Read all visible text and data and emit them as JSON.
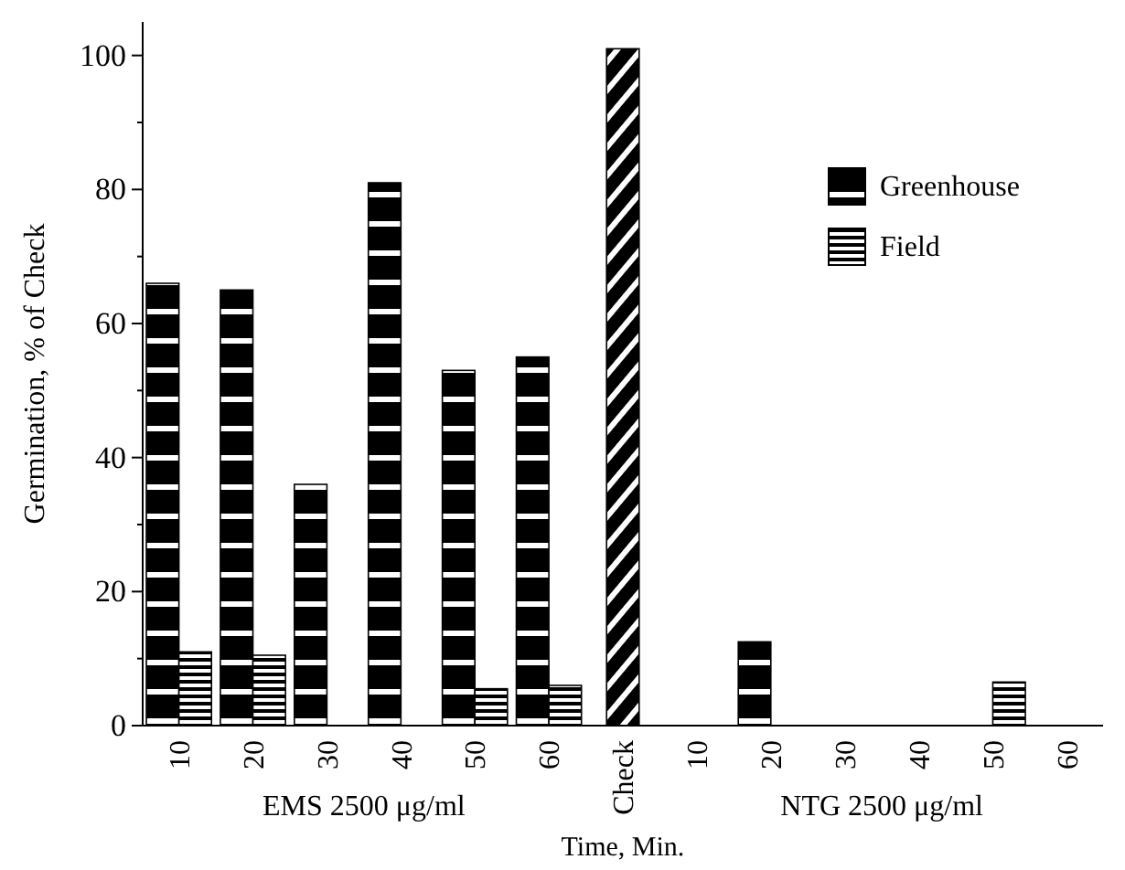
{
  "chart_data": {
    "type": "bar",
    "xlabel": "Time, Min.",
    "ylabel": "Germination, % of Check",
    "categories": [
      "10",
      "20",
      "30",
      "40",
      "50",
      "60",
      "Check",
      "10",
      "20",
      "30",
      "40",
      "50",
      "60"
    ],
    "series": [
      {
        "name": "Greenhouse",
        "color": "#000000",
        "values": [
          66,
          65,
          36,
          81,
          53,
          55,
          null,
          0,
          12.5,
          0,
          0,
          0,
          0
        ]
      },
      {
        "name": "Field",
        "color": "#000000",
        "values": [
          11,
          10.5,
          0,
          0,
          5.5,
          6,
          null,
          0,
          0,
          0,
          0,
          6.5,
          0
        ]
      },
      {
        "color": "#000000",
        "values": [
          null,
          null,
          null,
          null,
          null,
          null,
          101,
          null,
          null,
          null,
          null,
          null,
          null
        ]
      }
    ],
    "ylim": [
      0,
      105
    ],
    "yticks": [
      0,
      {
        "value": 10,
        "label": null
      },
      20,
      {
        "value": 30,
        "label": null
      },
      40,
      {
        "value": 50,
        "label": null
      },
      60,
      {
        "value": 70,
        "label": null
      },
      80,
      {
        "value": 90,
        "label": null
      },
      100
    ],
    "legend": "top right",
    "grid": false,
    "annotations": [
      "EMS 2500 μg/ml",
      "NTG 2500 μg/ml"
    ]
  }
}
